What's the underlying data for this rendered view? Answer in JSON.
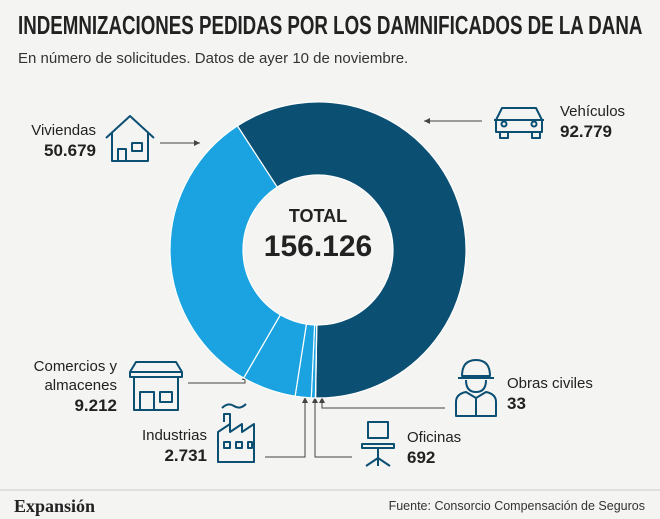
{
  "chart_data": {
    "type": "donut",
    "title": "INDEMNIZACIONES PEDIDAS POR LOS DAMNIFICADOS DE LA DANA",
    "subtitle": "En número de solicitudes. Datos de ayer 10 de noviembre.",
    "categories": [
      "Vehículos",
      "Obras civiles",
      "Oficinas",
      "Industrias",
      "Comercios y almacenes",
      "Viviendas"
    ],
    "values": [
      92779,
      33,
      692,
      2731,
      9212,
      50679
    ],
    "value_labels": [
      "92.779",
      "33",
      "692",
      "2.731",
      "9.212",
      "50.679"
    ],
    "colors": [
      "#0b4f73",
      "#1aa3e0",
      "#1aa3e0",
      "#1aa3e0",
      "#1aa3e0",
      "#1aa3e0"
    ],
    "total_title": "TOTAL",
    "total": {
      "value": 156126,
      "label": "156.126"
    },
    "brand": "Expansión",
    "source": "Fuente: Consorcio Compensación  de Seguros"
  }
}
